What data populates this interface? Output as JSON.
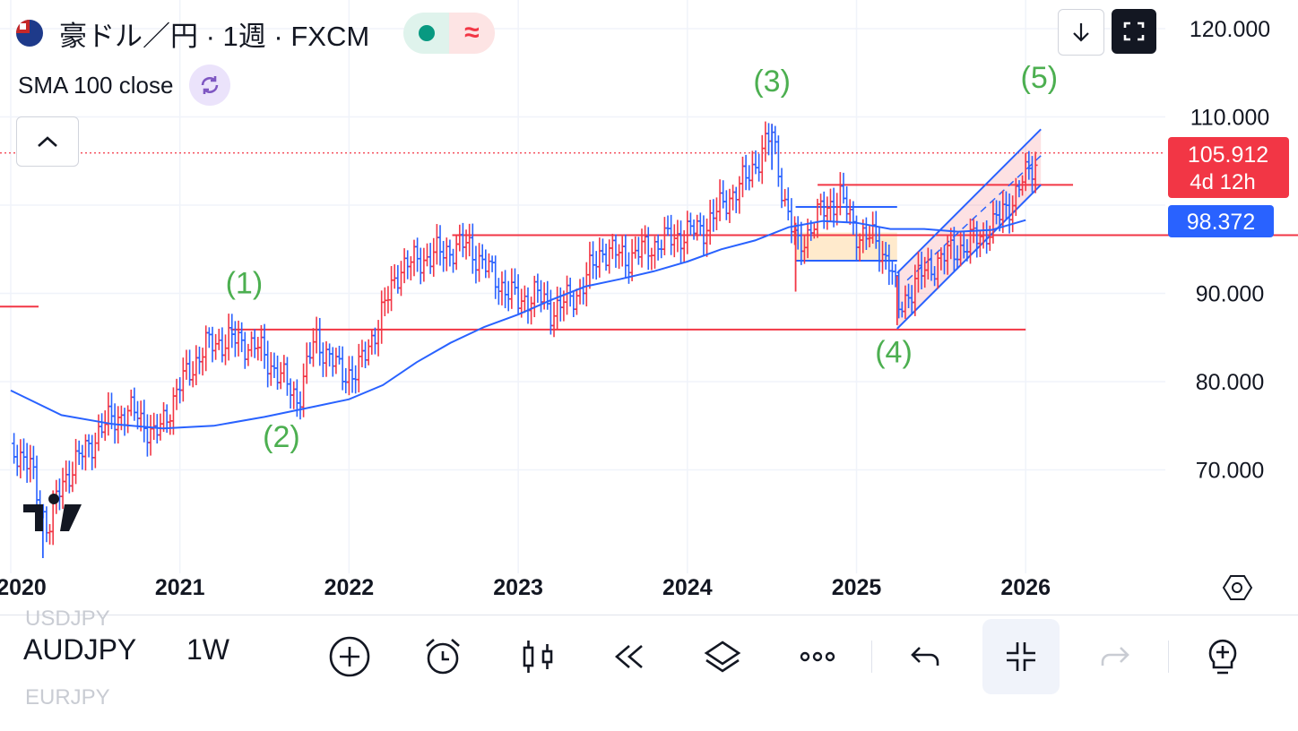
{
  "header": {
    "title": "豪ドル／円 · 1週 · FXCM",
    "indicator": "SMA 100 close"
  },
  "colors": {
    "up": "#f23645",
    "down": "#2962ff",
    "sma": "#2962ff",
    "wave_label": "#4caf50",
    "pill_green": "#089981",
    "pill_red": "#f23645"
  },
  "chart_data": {
    "type": "candlestick-bar",
    "symbol": "AUDJPY",
    "interval": "1W",
    "x_labels": [
      "2020",
      "2021",
      "2022",
      "2023",
      "2024",
      "2025",
      "2026"
    ],
    "y_ticks": [
      "120.000",
      "110.000",
      "90.000",
      "80.000",
      "70.000"
    ],
    "y_range": [
      60,
      120
    ],
    "last_price": "105.912",
    "countdown": "4d 12h",
    "sma_value": "98.372",
    "sma_series": [
      [
        2020.0,
        79.0
      ],
      [
        2020.3,
        76.2
      ],
      [
        2020.6,
        75.2
      ],
      [
        2020.9,
        74.7
      ],
      [
        2021.2,
        75.0
      ],
      [
        2021.5,
        76.0
      ],
      [
        2021.8,
        77.2
      ],
      [
        2022.0,
        78.0
      ],
      [
        2022.2,
        79.6
      ],
      [
        2022.4,
        82.2
      ],
      [
        2022.6,
        84.4
      ],
      [
        2022.8,
        86.2
      ],
      [
        2023.0,
        87.6
      ],
      [
        2023.2,
        89.3
      ],
      [
        2023.4,
        90.8
      ],
      [
        2023.6,
        91.6
      ],
      [
        2023.8,
        92.5
      ],
      [
        2024.0,
        93.6
      ],
      [
        2024.2,
        95.0
      ],
      [
        2024.4,
        96.0
      ],
      [
        2024.6,
        97.5
      ],
      [
        2024.8,
        98.2
      ],
      [
        2025.0,
        98.0
      ],
      [
        2025.2,
        97.3
      ],
      [
        2025.4,
        97.3
      ],
      [
        2025.6,
        97.0
      ],
      [
        2025.8,
        97.2
      ],
      [
        2026.0,
        98.3
      ]
    ],
    "price_series": [
      [
        2020.0,
        73.0
      ],
      [
        2020.12,
        70.0
      ],
      [
        2020.22,
        63.0
      ],
      [
        2020.3,
        68.5
      ],
      [
        2020.45,
        72.5
      ],
      [
        2020.6,
        76.0
      ],
      [
        2020.75,
        76.5
      ],
      [
        2020.85,
        73.5
      ],
      [
        2021.0,
        79.5
      ],
      [
        2021.15,
        84.0
      ],
      [
        2021.3,
        84.8
      ],
      [
        2021.45,
        84.0
      ],
      [
        2021.6,
        80.5
      ],
      [
        2021.7,
        78.0
      ],
      [
        2021.8,
        85.0
      ],
      [
        2021.95,
        81.0
      ],
      [
        2022.05,
        81.0
      ],
      [
        2022.2,
        88.0
      ],
      [
        2022.3,
        93.0
      ],
      [
        2022.45,
        94.0
      ],
      [
        2022.6,
        95.0
      ],
      [
        2022.7,
        95.5
      ],
      [
        2022.85,
        92.0
      ],
      [
        2023.0,
        89.0
      ],
      [
        2023.1,
        90.0
      ],
      [
        2023.2,
        88.0
      ],
      [
        2023.35,
        90.0
      ],
      [
        2023.5,
        95.0
      ],
      [
        2023.65,
        94.0
      ],
      [
        2023.8,
        95.5
      ],
      [
        2023.95,
        96.5
      ],
      [
        2024.1,
        97.5
      ],
      [
        2024.25,
        101.0
      ],
      [
        2024.35,
        103.0
      ],
      [
        2024.5,
        108.0
      ],
      [
        2024.58,
        100.0
      ],
      [
        2024.65,
        95.0
      ],
      [
        2024.78,
        99.0
      ],
      [
        2024.9,
        101.0
      ],
      [
        2025.0,
        97.0
      ],
      [
        2025.1,
        96.0
      ],
      [
        2025.2,
        93.5
      ],
      [
        2025.25,
        88.0
      ],
      [
        2025.35,
        91.5
      ],
      [
        2025.5,
        94.0
      ],
      [
        2025.65,
        95.5
      ],
      [
        2025.8,
        97.5
      ],
      [
        2025.9,
        100.0
      ],
      [
        2026.05,
        104.8
      ]
    ],
    "horizontal_lines": [
      96.6,
      85.9,
      102.3
    ],
    "wave_labels": [
      {
        "label": "(1)",
        "x": 2021.38,
        "y": 90.0
      },
      {
        "label": "(2)",
        "x": 2021.6,
        "y": 72.6
      },
      {
        "label": "(3)",
        "x": 2024.5,
        "y": 112.9
      },
      {
        "label": "(4)",
        "x": 2025.22,
        "y": 82.2
      },
      {
        "label": "(5)",
        "x": 2026.08,
        "y": 113.3
      }
    ]
  },
  "toolbar": {
    "symbol": "AUDJPY",
    "symbol_prev": "USDJPY",
    "symbol_next": "EURJPY",
    "timeframe": "1W"
  }
}
